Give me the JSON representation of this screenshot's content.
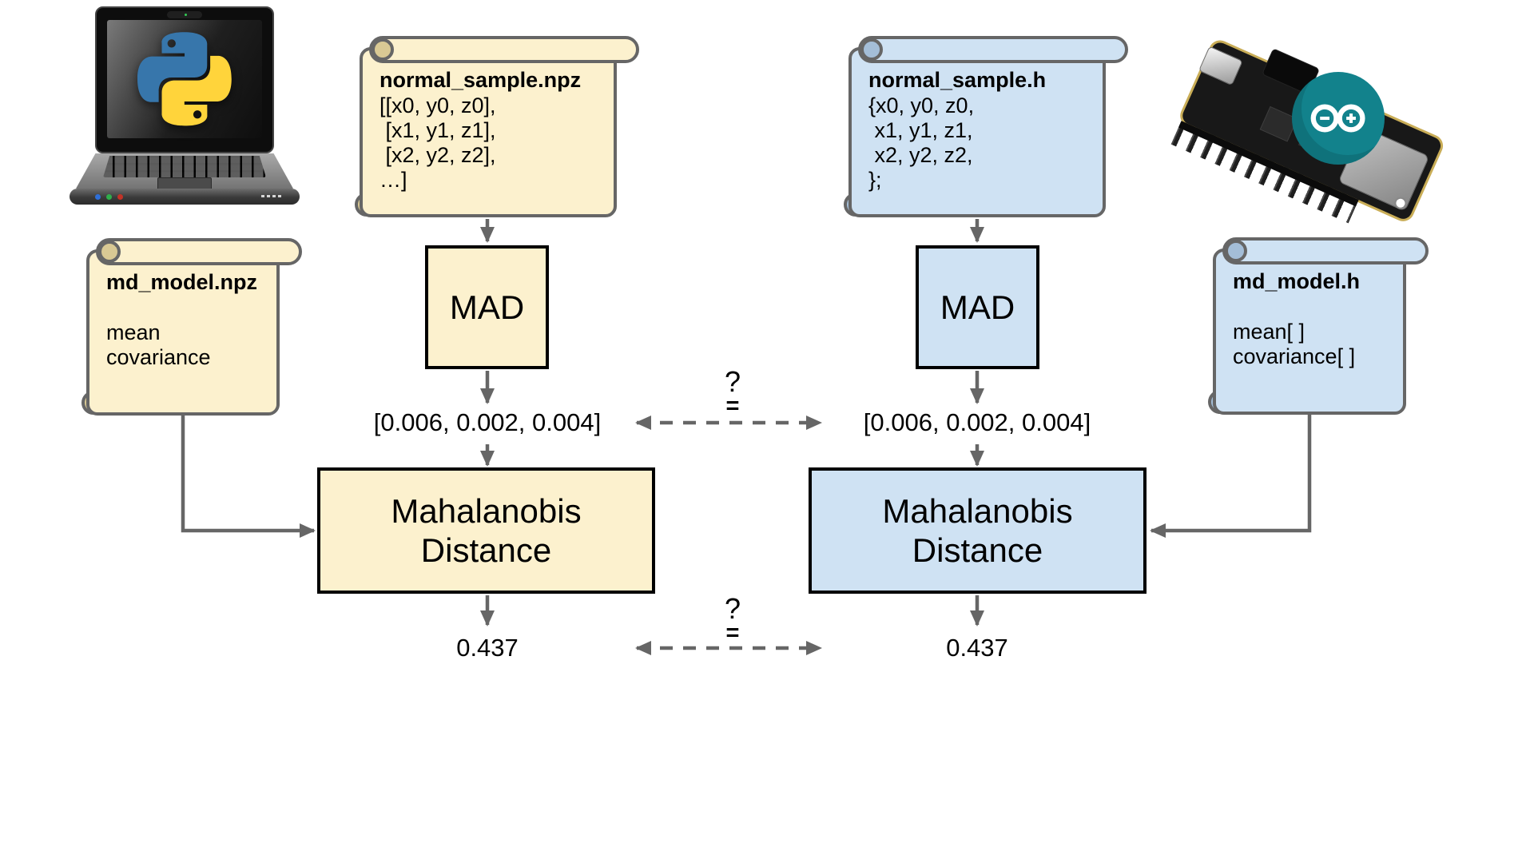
{
  "colors": {
    "python_fill": "#FCF1CE",
    "arduino_fill": "#CFE2F3",
    "outline_gray": "#666666",
    "box_border": "#000000",
    "arduino_teal": "#12828C",
    "python_blue": "#3776AB",
    "python_yellow": "#FFD43B"
  },
  "icons": {
    "python_platform": "python-laptop",
    "arduino_platform": "arduino-feather-board",
    "python_logo": "python-snakes-logo",
    "arduino_logo": "arduino-infinity-logo"
  },
  "python_branch": {
    "sample_file": {
      "title": "normal_sample.npz",
      "lines": [
        "[[x0, y0, z0],",
        " [x1, y1, z1],",
        " [x2, y2, z2],",
        "…]"
      ]
    },
    "model_file": {
      "title": "md_model.npz",
      "lines": [
        "",
        "mean",
        "covariance"
      ]
    },
    "mad_label": "MAD",
    "mad_output": "[0.006, 0.002, 0.004]",
    "distance_label": [
      "Mahalanobis",
      "Distance"
    ],
    "distance_output": "0.437"
  },
  "arduino_branch": {
    "sample_file": {
      "title": "normal_sample.h",
      "lines": [
        "{x0, y0, z0,",
        " x1, y1, z1,",
        " x2, y2, z2,",
        "};"
      ]
    },
    "model_file": {
      "title": "md_model.h",
      "lines": [
        "",
        "mean[ ]",
        "covariance[ ]"
      ]
    },
    "mad_label": "MAD",
    "mad_output": "[0.006, 0.002, 0.004]",
    "distance_label": [
      "Mahalanobis",
      "Distance"
    ],
    "distance_output": "0.437"
  },
  "comparison": {
    "question_mark": "?",
    "equals_sign": "="
  }
}
